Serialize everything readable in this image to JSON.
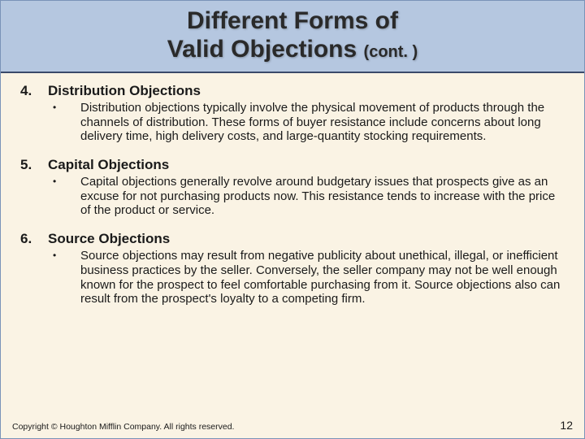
{
  "title": {
    "line1": "Different Forms of",
    "line2_main": "Valid Objections",
    "line2_cont": "(cont. )"
  },
  "items": [
    {
      "num": "4.",
      "heading": "Distribution Objections",
      "body": "Distribution objections typically involve the physical movement of products through the channels of distribution. These forms of buyer resistance include concerns about long delivery time, high delivery costs, and large-quantity stocking requirements."
    },
    {
      "num": "5.",
      "heading": "Capital Objections",
      "body": "Capital objections generally revolve around budgetary issues that prospects give as an excuse for not purchasing products now. This resistance tends to increase with the price of the product or service."
    },
    {
      "num": "6.",
      "heading": "Source Objections",
      "body": "Source objections may result from negative publicity about unethical, illegal, or inefficient business practices by the seller. Conversely, the seller company may not be well enough known for the prospect to feel comfortable purchasing from it. Source objections also can result from the prospect's loyalty to a competing firm."
    }
  ],
  "footer": {
    "copyright": "Copyright © Houghton Mifflin Company. All rights reserved.",
    "page": "12"
  },
  "colors": {
    "slide_bg": "#faf3e4",
    "title_band_bg": "#b5c7e0",
    "title_border": "#3a4a6a",
    "outer_border": "#7a93b8",
    "text": "#1a1a1a"
  }
}
